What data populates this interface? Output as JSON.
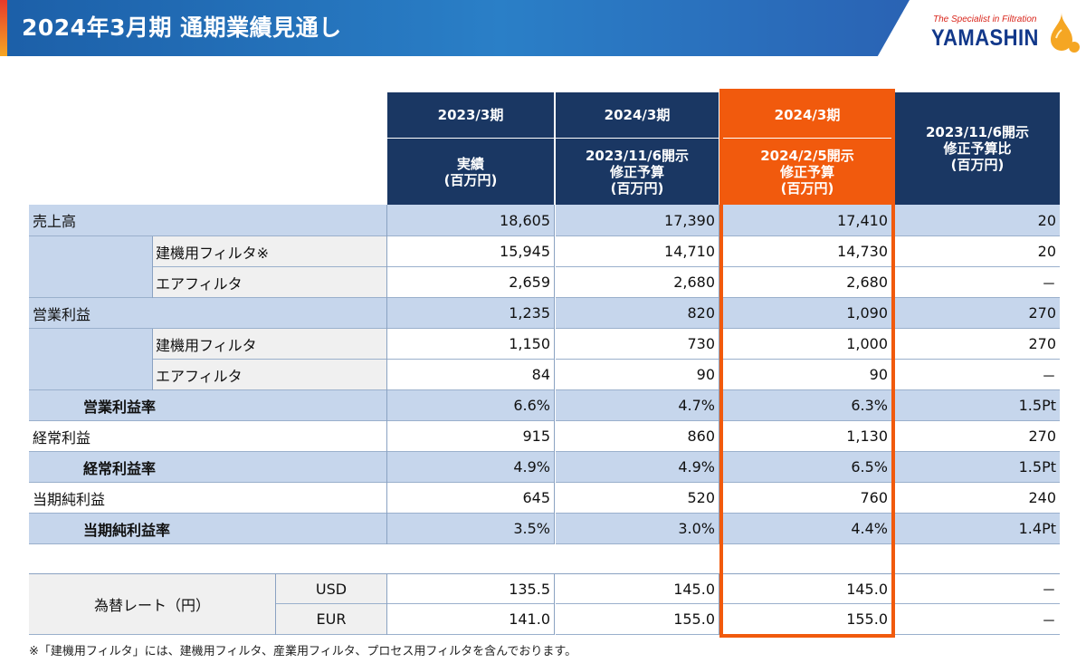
{
  "header": {
    "title": "2024年3月期 通期業績見通し"
  },
  "logo": {
    "tagline": "The Specialist in Filtration",
    "name": "YAMASHIN"
  },
  "columns": [
    {
      "period": "2023/3期",
      "subtitle": "実績\n(百万円)"
    },
    {
      "period": "2024/3期",
      "subtitle": "2023/11/6開示\n修正予算\n(百万円)"
    },
    {
      "period": "2024/3期",
      "subtitle": "2024/2/5開示\n修正予算\n(百万円)"
    },
    {
      "label": "2023/11/6開示\n修正予算比\n(百万円)"
    }
  ],
  "rows": [
    {
      "label": "売上高",
      "values": [
        "18,605",
        "17,390",
        "17,410",
        "20"
      ]
    },
    {
      "label": "建機用フィルタ※",
      "values": [
        "15,945",
        "14,710",
        "14,730",
        "20"
      ]
    },
    {
      "label": "エアフィルタ",
      "values": [
        "2,659",
        "2,680",
        "2,680",
        "－"
      ]
    },
    {
      "label": "営業利益",
      "values": [
        "1,235",
        "820",
        "1,090",
        "270"
      ]
    },
    {
      "label": "建機用フィルタ",
      "values": [
        "1,150",
        "730",
        "1,000",
        "270"
      ]
    },
    {
      "label": "エアフィルタ",
      "values": [
        "84",
        "90",
        "90",
        "－"
      ]
    },
    {
      "label": "営業利益率",
      "values": [
        "6.6%",
        "4.7%",
        "6.3%",
        "1.5Pt"
      ]
    },
    {
      "label": "経常利益",
      "values": [
        "915",
        "860",
        "1,130",
        "270"
      ]
    },
    {
      "label": "経常利益率",
      "values": [
        "4.9%",
        "4.9%",
        "6.5%",
        "1.5Pt"
      ]
    },
    {
      "label": "当期純利益",
      "values": [
        "645",
        "520",
        "760",
        "240"
      ]
    },
    {
      "label": "当期純利益率",
      "values": [
        "3.5%",
        "3.0%",
        "4.4%",
        "1.4Pt"
      ]
    }
  ],
  "fx": {
    "label": "為替レート（円）",
    "rows": [
      {
        "currency": "USD",
        "values": [
          "135.5",
          "145.0",
          "145.0",
          "－"
        ]
      },
      {
        "currency": "EUR",
        "values": [
          "141.0",
          "155.0",
          "155.0",
          "－"
        ]
      }
    ]
  },
  "footnote": "※「建機用フィルタ」には、建機用フィルタ、産業用フィルタ、プロセス用フィルタを含んでおります。",
  "colors": {
    "header_navy": "#1a3763",
    "highlight_orange": "#f15a0d",
    "row_blue": "#c6d6ec"
  }
}
